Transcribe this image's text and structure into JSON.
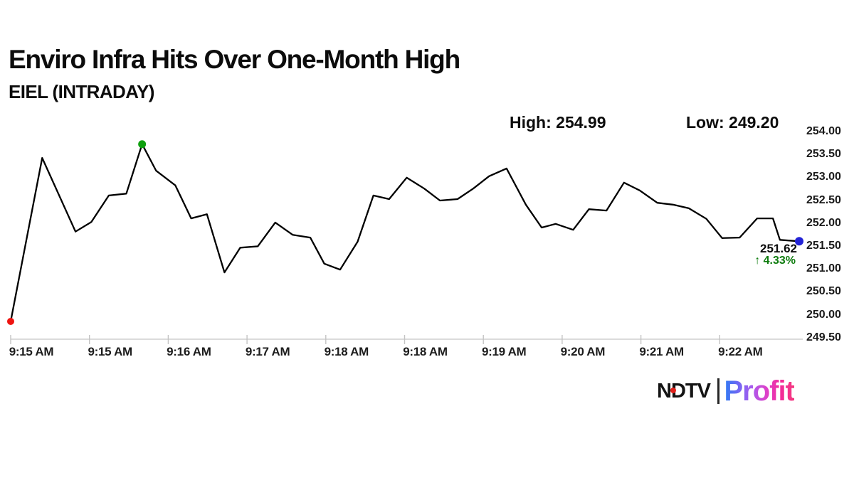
{
  "header": {
    "title": "Enviro Infra Hits Over One-Month High",
    "subtitle": "EIEL (INTRADAY)",
    "high_label": "High: 254.99",
    "low_label": "Low: 249.20"
  },
  "chart_data": {
    "type": "line",
    "title": "EIEL intraday price",
    "xlabel": "",
    "ylabel": "",
    "grid": false,
    "x_axis": {
      "tick_labels": [
        "9:15 AM",
        "9:15 AM",
        "9:16 AM",
        "9:17 AM",
        "9:18 AM",
        "9:18 AM",
        "9:19 AM",
        "9:20 AM",
        "9:21 AM",
        "9:22 AM"
      ],
      "tick_interval_seconds": 45
    },
    "y_axis": {
      "tick_labels": [
        "254.00",
        "253.50",
        "253.00",
        "252.50",
        "252.00",
        "251.50",
        "251.00",
        "250.50",
        "250.00",
        "249.50"
      ],
      "ylim": [
        249.5,
        254.0
      ]
    },
    "series": [
      {
        "name": "EIEL",
        "x_seconds_from_915am": [
          0,
          18,
          37,
          46,
          56,
          66,
          75,
          83,
          94,
          103,
          112,
          122,
          131,
          141,
          151,
          161,
          171,
          179,
          188,
          198,
          207,
          216,
          226,
          236,
          245,
          255,
          264,
          273,
          283,
          294,
          303,
          311,
          321,
          330,
          340,
          350,
          359,
          369,
          378,
          387,
          397,
          406,
          416,
          426,
          435,
          439,
          450
        ],
        "values": [
          249.87,
          253.44,
          251.83,
          252.04,
          252.62,
          252.66,
          253.74,
          253.16,
          252.84,
          252.12,
          252.21,
          250.94,
          251.48,
          251.51,
          252.03,
          251.76,
          251.7,
          251.13,
          251.0,
          251.61,
          252.62,
          252.54,
          253.01,
          252.77,
          252.51,
          252.54,
          252.77,
          253.04,
          253.21,
          252.42,
          251.92,
          252.0,
          251.87,
          252.32,
          252.29,
          252.9,
          252.73,
          252.46,
          252.42,
          252.34,
          252.11,
          251.69,
          251.7,
          252.12,
          252.12,
          251.65,
          251.62
        ]
      }
    ],
    "stats": {
      "high": 254.99,
      "low": 249.2,
      "last": 251.62,
      "change_pct": 4.33
    },
    "annotation": {
      "price": "251.62",
      "change": "↑ 4.33%"
    },
    "colors": {
      "line": "#000000",
      "start_dot": "#ee1410",
      "peak_dot": "#0fa00f",
      "last_dot": "#2323d6",
      "change_text": "#0e7c0e",
      "axis": "#cfcfcf",
      "tick": "#c4c4c4"
    }
  },
  "footer_logo": {
    "ndtv": "NDTV",
    "profit": "Profit",
    "ndtv_color": "#141414",
    "dot_color": "#e3211b",
    "separator_color": "#262626",
    "profit_gradient": [
      "#2b7bf3",
      "#6f68f3",
      "#a85bee",
      "#dc41cb",
      "#f32b9b",
      "#f4387f"
    ]
  }
}
